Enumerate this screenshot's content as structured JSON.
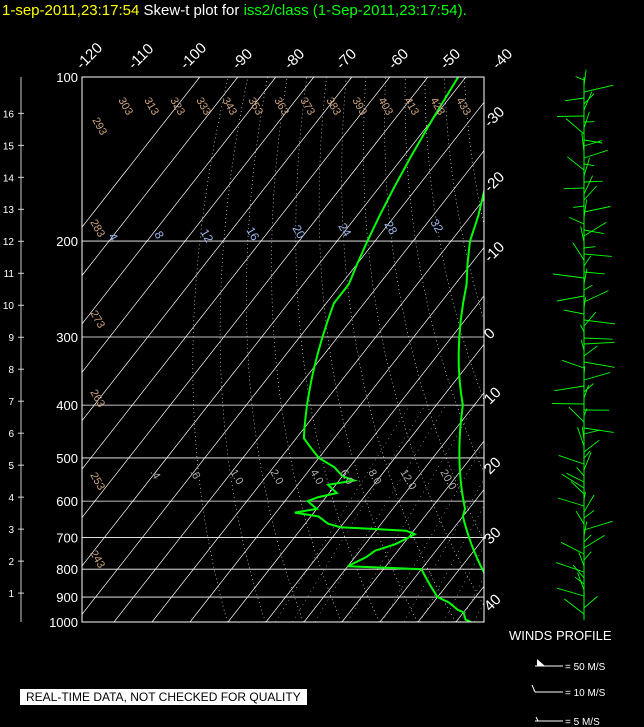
{
  "title": {
    "time": "1-sep-2011,23:17:54",
    "middle": "Skew-t plot for",
    "station": "iss2/class (1-Sep-2011,23:17:54)."
  },
  "chart_data": {
    "type": "line",
    "y_pressure_ticks": [
      100,
      200,
      300,
      400,
      500,
      600,
      700,
      800,
      900,
      1000
    ],
    "height_km_ticks": [
      1,
      2,
      3,
      4,
      5,
      6,
      7,
      8,
      9,
      10,
      11,
      12,
      13,
      14,
      15,
      16
    ],
    "temperature_ticks_top": [
      -120,
      -110,
      -100,
      -90,
      -80,
      -70,
      -60,
      -50,
      -40
    ],
    "temperature_ticks_right": [
      -30,
      -20,
      -10,
      0,
      10,
      20,
      30,
      40
    ],
    "theta_labels": [
      "293",
      "303",
      "313",
      "323",
      "333",
      "343",
      "353",
      "363",
      "373",
      "383",
      "393",
      "403",
      "413",
      "423",
      "433"
    ],
    "theta_labels_left": [
      "283",
      "273",
      "263",
      "253",
      "243"
    ],
    "mixing_ratio_labels_upper": [
      "4",
      "8",
      "12",
      "16",
      "20",
      "24",
      "28",
      "32"
    ],
    "mixing_ratio_labels_lower": [
      ".4",
      ".6",
      "1.0",
      "2.0",
      "4.0",
      "6.0",
      "8.0",
      "12.0",
      "20.0"
    ],
    "series": [
      {
        "role": "temperature",
        "color": "#00ff00",
        "p": [
          1000,
          990,
          960,
          950,
          900,
          870,
          850,
          820,
          800,
          780,
          760,
          740,
          720,
          700,
          680,
          660,
          640,
          620,
          600,
          580,
          560,
          540,
          520,
          500,
          480,
          460,
          440,
          420,
          400,
          380,
          360,
          340,
          320,
          300,
          280,
          260,
          240,
          220,
          200,
          180,
          160,
          140,
          120,
          100
        ],
        "t": [
          32,
          30,
          28,
          26,
          24,
          22,
          20,
          18,
          16,
          14,
          12,
          10,
          8,
          6,
          4,
          2,
          0,
          -1,
          -3,
          -5,
          -7,
          -9,
          -11,
          -13,
          -15,
          -17,
          -19,
          -21,
          -23,
          -26,
          -29,
          -32,
          -35,
          -38,
          -41,
          -44,
          -47,
          -51,
          -55,
          -58,
          -62,
          -66,
          -71,
          -76
        ]
      },
      {
        "role": "dewpoint",
        "color": "#00ff00",
        "p": [
          1000,
          990,
          960,
          950,
          920,
          900,
          880,
          860,
          840,
          820,
          800,
          790,
          760,
          740,
          720,
          700,
          690,
          680,
          670,
          660,
          640,
          630,
          620,
          610,
          600,
          590,
          580,
          570,
          560,
          550,
          540,
          520,
          500,
          480,
          460,
          440,
          420,
          400,
          380,
          360,
          340,
          320,
          300,
          280,
          260,
          240,
          220,
          200,
          180,
          160,
          140,
          120,
          100
        ],
        "t": [
          24,
          22,
          20,
          18,
          14,
          10,
          8,
          6,
          4,
          2,
          0,
          -20,
          -17,
          -16,
          -12,
          -10,
          -9,
          -12,
          -30,
          -34,
          -38,
          -45,
          -40,
          -42,
          -44,
          -42,
          -38,
          -40,
          -42,
          -36,
          -40,
          -44,
          -50,
          -54,
          -58,
          -60,
          -62,
          -64,
          -66,
          -68,
          -70,
          -72,
          -74,
          -76,
          -78,
          -78,
          -80,
          -82,
          -84,
          -86,
          -88,
          -90,
          -92
        ]
      }
    ],
    "wind_legend": [
      "= 50 M/S",
      "= 10 M/S",
      "= 5 M/S"
    ],
    "wind_title": "WINDS PROFILE"
  },
  "footer": {
    "quality": "REAL-TIME DATA, NOT CHECKED FOR QUALITY"
  },
  "colors": {
    "background": "#000000",
    "grid": "#ffffff",
    "temp": "#00ff00",
    "theta": "#c9a27e",
    "mix": "#9ab4e6",
    "axis": "#ffffff"
  }
}
